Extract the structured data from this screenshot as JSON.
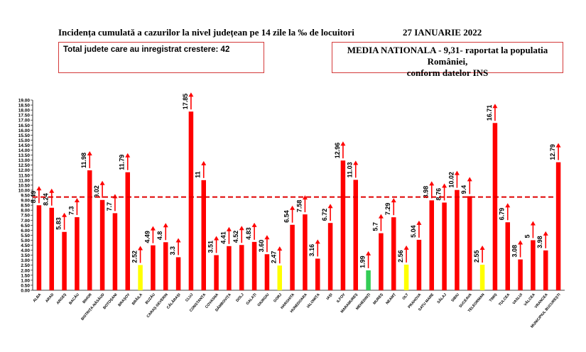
{
  "header": {
    "title": "Incidența cumulată a cazurilor la nivel județean pe 14 zile la ‰ de locuitori",
    "date": "27 IANUARIE 2022"
  },
  "info": {
    "counties_increase": "Total judete care au inregistrat crestere: 42",
    "national_average_line1": "MEDIA NATIONALA - 9,31-  raportat la populatia României,",
    "national_average_line2": "conform datelor INS"
  },
  "colors": {
    "bar_default": "#ff0000",
    "bar_yellow": "#ffff00",
    "bar_green": "#33cc55",
    "average_line": "#e00000",
    "arrow": "#ff0000"
  },
  "chart_data": {
    "type": "bar",
    "title": "Incidența cumulată a cazurilor la nivel județean pe 14 zile la ‰ de locuitori",
    "ylim": [
      0,
      19
    ],
    "yticks": [
      "0.00",
      "0.50",
      "1.00",
      "1.50",
      "2.00",
      "2.50",
      "3.00",
      "3.50",
      "4.00",
      "4.50",
      "5.00",
      "5.50",
      "6.00",
      "6.50",
      "7.00",
      "7.50",
      "8.00",
      "8.50",
      "9.00",
      "9.50",
      "10.00",
      "10.50",
      "11.00",
      "11.50",
      "12.00",
      "12.50",
      "13.00",
      "13.50",
      "14.00",
      "14.50",
      "15.00",
      "15.50",
      "16.00",
      "16.50",
      "17.00",
      "17.50",
      "18.00",
      "18.50",
      "19.00"
    ],
    "reference_line": 9.31,
    "categories": [
      "ALBA",
      "ARAD",
      "ARGEȘ",
      "BACĂU",
      "BIHOR",
      "BISTRIȚA-NĂSĂUD",
      "BOTOȘANI",
      "BRAȘOV",
      "BRĂILA",
      "BUZĂU",
      "CARAȘ-SEVERIN",
      "CĂLĂRAȘI",
      "CLUJ",
      "CONSTANȚA",
      "COVASNA",
      "DÂMBOVIȚA",
      "DOLJ",
      "GALAȚI",
      "GIURGIU",
      "GORJ",
      "HARGHITA",
      "HUNEDOARA",
      "IALOMIȚA",
      "IAȘI",
      "ILFOV",
      "MARAMUREȘ",
      "MEHEDINȚI",
      "MUREȘ",
      "NEAMȚ",
      "OLT",
      "PRAHOVA",
      "SATU MARE",
      "SĂLAJ",
      "SIBIU",
      "SUCEAVA",
      "TELEORMAN",
      "TIMIȘ",
      "TULCEA",
      "VASLUI",
      "VÂLCEA",
      "VRANCEA",
      "MUNICIPIUL BUCUREȘTI"
    ],
    "values": [
      8.49,
      8.24,
      5.83,
      7.3,
      11.98,
      9.02,
      7.7,
      11.79,
      2.52,
      4.49,
      4.8,
      3.3,
      17.85,
      11,
      3.51,
      4.41,
      4.52,
      4.83,
      3.6,
      2.47,
      6.54,
      7.58,
      3.16,
      6.72,
      12.96,
      11.03,
      1.99,
      5.7,
      7.29,
      2.56,
      5.04,
      8.98,
      8.76,
      10.02,
      9.4,
      2.55,
      16.71,
      6.79,
      3.08,
      5,
      3.98,
      12.79
    ],
    "value_labels": [
      "8.49",
      "8.24",
      "5.83",
      "7.3",
      "11.98",
      "9.02",
      "7.7",
      "11.79",
      "2.52",
      "4.49",
      "4.8",
      "3.3",
      "17.85",
      "11",
      "3.51",
      "4.41",
      "4.52",
      "4.83",
      "3.60",
      "2.47",
      "6.54",
      "7.58",
      "3.16",
      "6.72",
      "12.96",
      "11.03",
      "1.99",
      "5.7",
      "7.29",
      "2.56",
      "5.04",
      "8.98",
      "8.76",
      "10.02",
      "9.4",
      "2.55",
      "16.71",
      "6.79",
      "3.08",
      "5",
      "3.98",
      "12.79"
    ],
    "bar_colors": [
      "red",
      "red",
      "red",
      "red",
      "red",
      "red",
      "red",
      "red",
      "yellow",
      "red",
      "red",
      "red",
      "red",
      "red",
      "red",
      "red",
      "red",
      "red",
      "red",
      "yellow",
      "red",
      "red",
      "red",
      "red",
      "red",
      "red",
      "green",
      "red",
      "red",
      "yellow",
      "red",
      "red",
      "red",
      "red",
      "red",
      "yellow",
      "red",
      "red",
      "red",
      "red",
      "red",
      "red"
    ],
    "trend": "up"
  }
}
